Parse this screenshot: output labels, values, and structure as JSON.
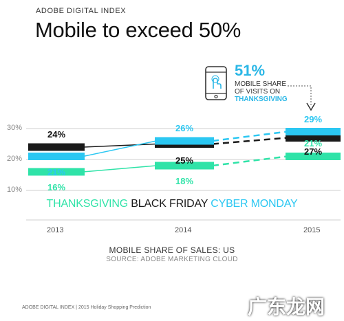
{
  "header": {
    "pretitle": "ADOBE DIGITAL INDEX",
    "title": "Mobile to exceed 50%"
  },
  "callout": {
    "value": "51%",
    "line1": "MOBILE SHARE",
    "line2": "OF VISITS ON",
    "line3": "THANKSGIVING"
  },
  "legend": {
    "thanksgiving": "THANKSGIVING",
    "black_friday": "BLACK FRIDAY",
    "cyber_monday": "CYBER MONDAY"
  },
  "captions": {
    "main": "MOBILE SHARE OF SALES: US",
    "source": "SOURCE: ADOBE MARKETING CLOUD"
  },
  "footer": "ADOBE DIGITAL INDEX | 2015 Holiday Shopping Prediction",
  "watermark": "广东龙网",
  "colors": {
    "thanksgiving": "#2fe3a8",
    "black_friday": "#1a1a1a",
    "cyber_monday": "#2bc7f2",
    "grid": "#cfcfcf",
    "callout_accent": "#2bb7e6"
  },
  "chart_data": {
    "type": "line",
    "x": [
      "2013",
      "2014",
      "2015"
    ],
    "ylim": [
      10,
      30
    ],
    "yticks": [
      "10%",
      "20%",
      "30%"
    ],
    "grid": true,
    "series": [
      {
        "name": "THANKSGIVING",
        "values": [
          16,
          18,
          21
        ],
        "labels": [
          "16%",
          "18%",
          "21%"
        ],
        "forecast_last": true
      },
      {
        "name": "BLACK FRIDAY",
        "values": [
          24,
          25,
          27
        ],
        "labels": [
          "24%",
          "25%",
          "27%"
        ],
        "forecast_last": true
      },
      {
        "name": "CYBER MONDAY",
        "values": [
          21,
          26,
          29
        ],
        "labels": [
          "21%",
          "26%",
          "29%"
        ],
        "forecast_last": true
      }
    ]
  }
}
